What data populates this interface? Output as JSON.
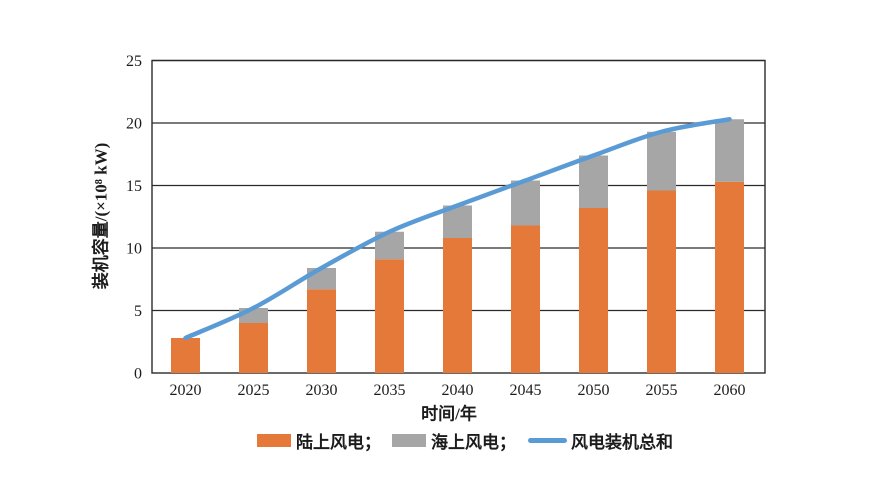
{
  "chart_data": {
    "type": "bar",
    "subtype": "stacked-bars-with-total-line",
    "categories": [
      "2020",
      "2025",
      "2030",
      "2035",
      "2040",
      "2045",
      "2050",
      "2055",
      "2060"
    ],
    "series": [
      {
        "name": "陆上风电",
        "kind": "bar",
        "color": "#e4793a",
        "values": [
          2.8,
          4.0,
          6.7,
          9.1,
          10.8,
          11.8,
          13.2,
          14.6,
          15.3
        ]
      },
      {
        "name": "海上风电",
        "kind": "bar",
        "color": "#a6a6a6",
        "values": [
          0,
          1.2,
          1.7,
          2.2,
          2.6,
          3.6,
          4.2,
          4.7,
          5.0
        ]
      },
      {
        "name": "风电装机总和",
        "kind": "line",
        "color": "#5b9bd5",
        "values": [
          2.8,
          5.2,
          8.4,
          11.3,
          13.4,
          15.4,
          17.4,
          19.3,
          20.3
        ]
      }
    ],
    "xlabel": "时间/年",
    "ylabel": "装机容量/(×10⁸ kW)",
    "ylim": [
      0,
      25
    ],
    "yticks": [
      0,
      5,
      10,
      15,
      20,
      25
    ],
    "grid": true,
    "legend_position": "bottom",
    "axis_color": "#2a2a2a",
    "tick_font_size": 16
  },
  "legend": {
    "items": [
      {
        "label": "陆上风电；",
        "swatch": "bar",
        "color": "#e4793a"
      },
      {
        "label": "海上风电；",
        "swatch": "bar",
        "color": "#a6a6a6"
      },
      {
        "label": "风电装机总和",
        "swatch": "line",
        "color": "#5b9bd5"
      }
    ]
  }
}
